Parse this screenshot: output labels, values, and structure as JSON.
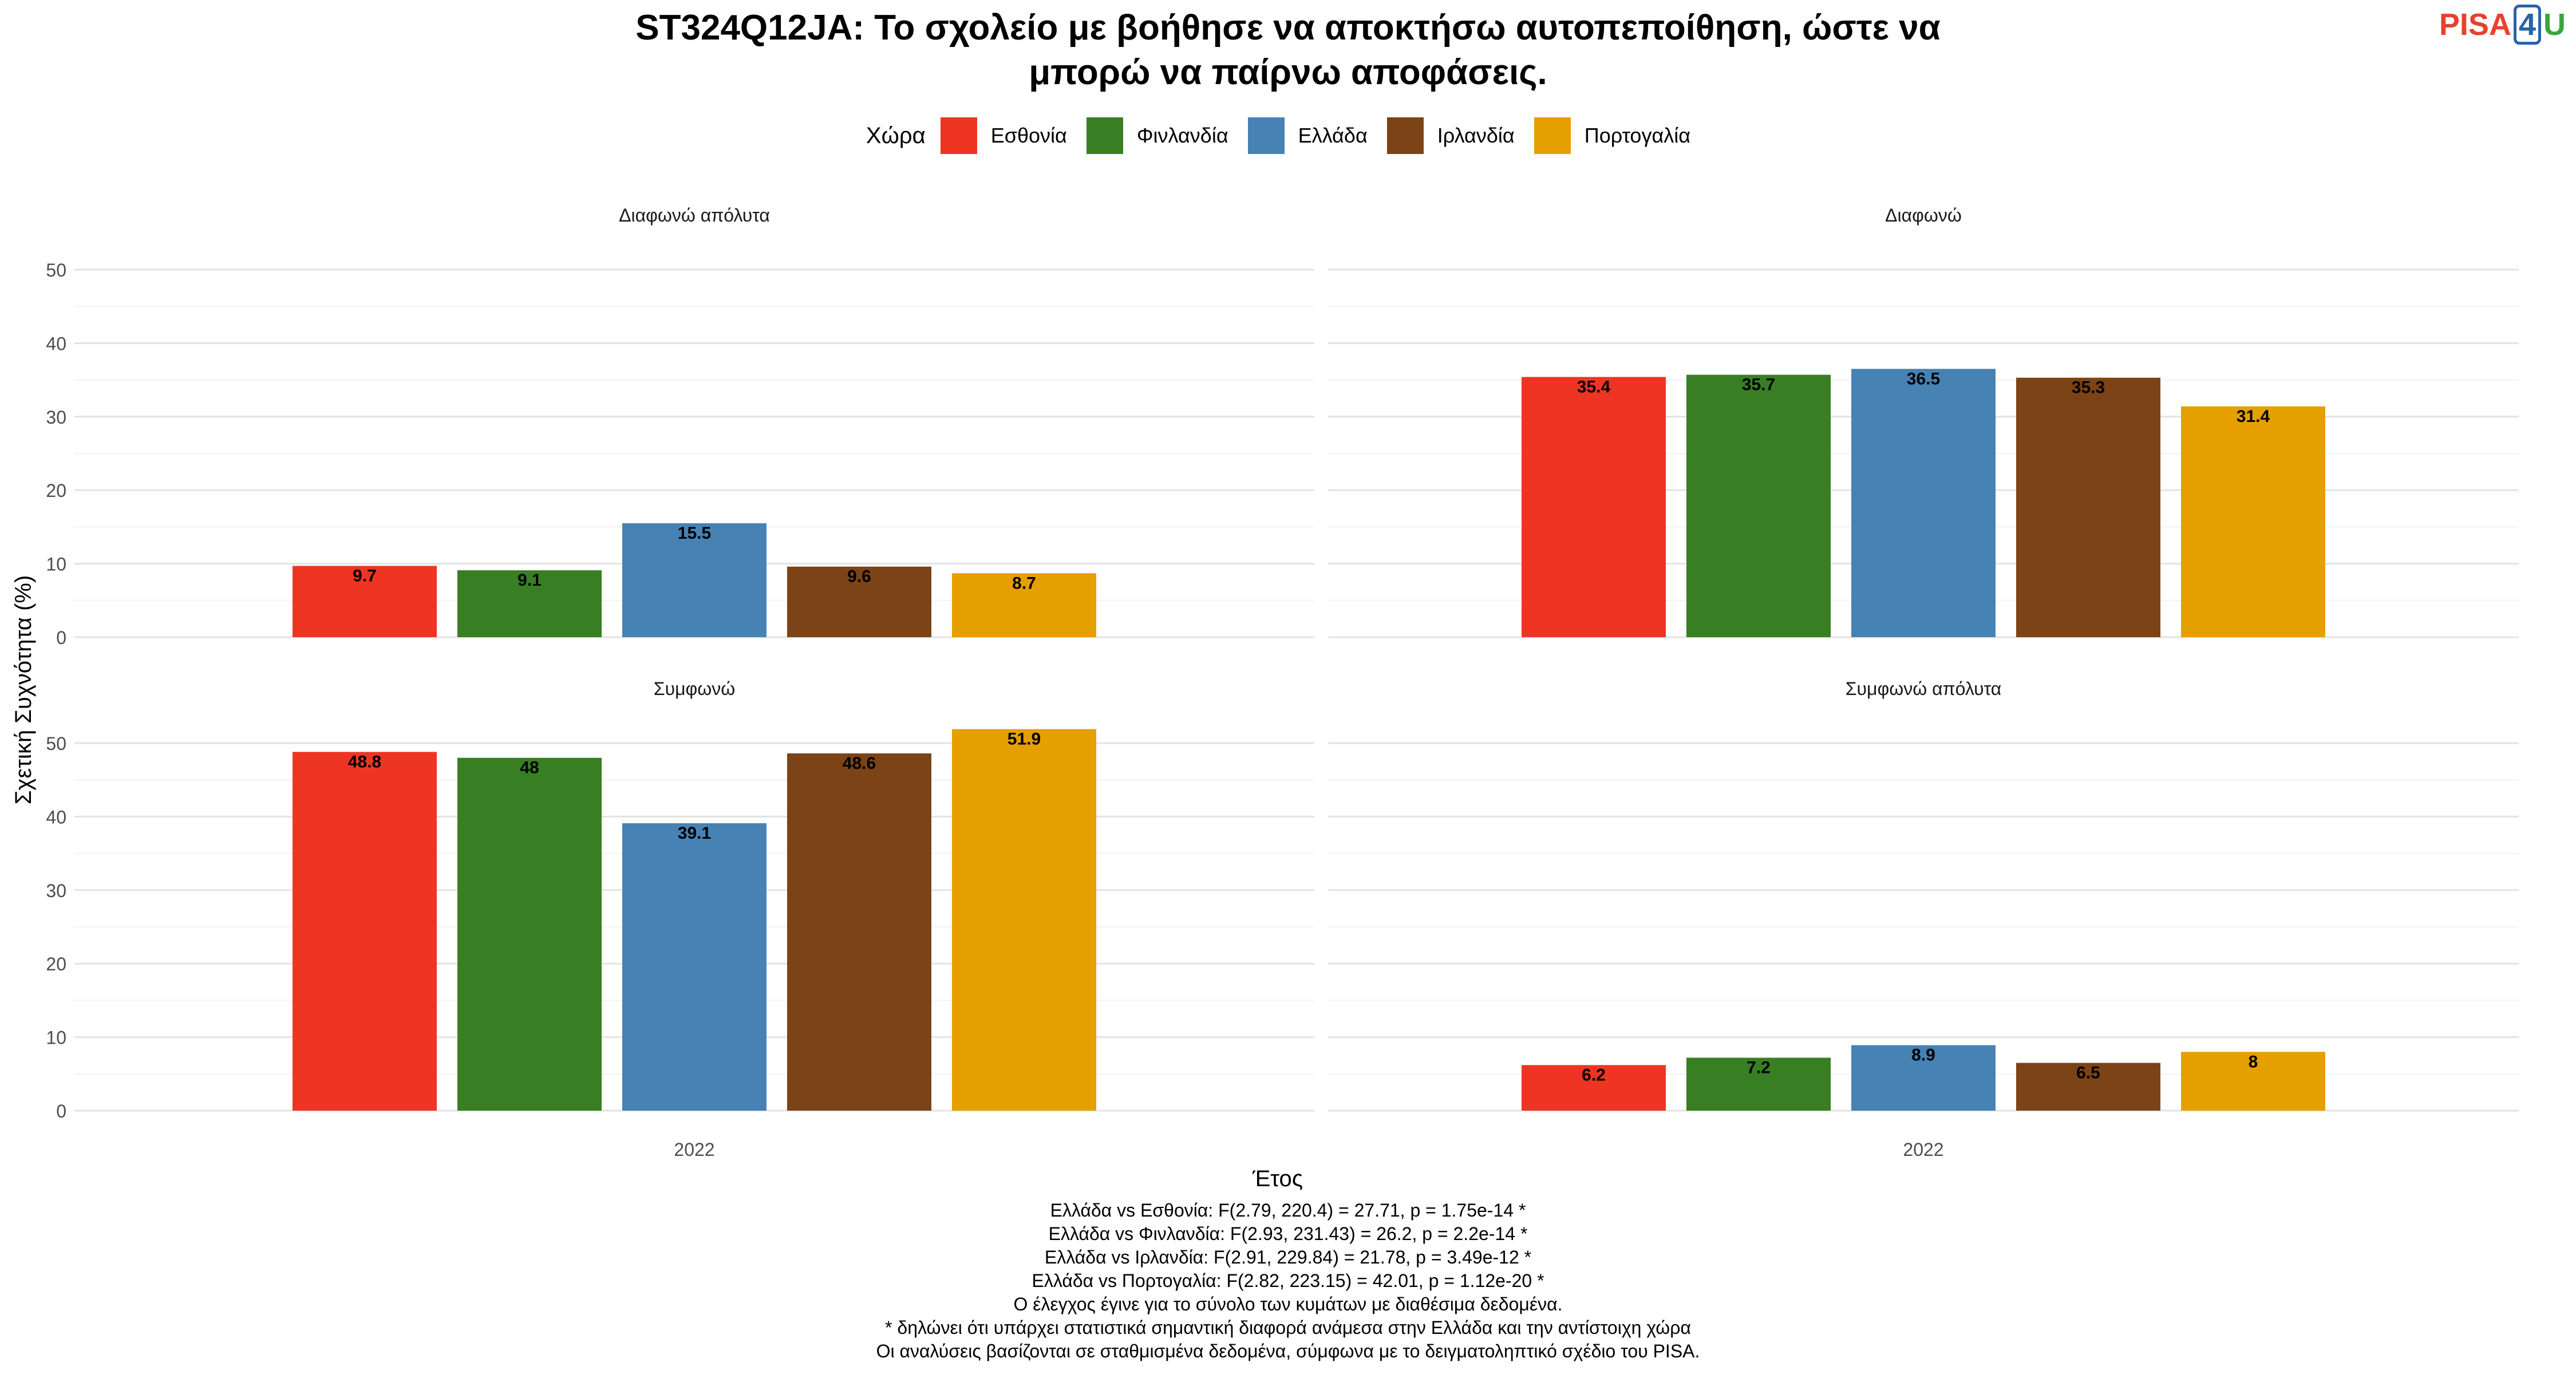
{
  "logo": {
    "part1": "PISA",
    "part2": "4",
    "part3": "U"
  },
  "chart_data": {
    "type": "bar",
    "title_lines": [
      "ST324Q12JA: Το σχολείο με βοήθησε να αποκτήσω αυτοπεποίθηση, ώστε να",
      "μπορώ να παίρνω αποφάσεις."
    ],
    "xlabel": "Έτος",
    "ylabel": "Σχετική Συχνότητα (%)",
    "ylim": [
      0,
      50
    ],
    "yticks": [
      "0",
      "10",
      "20",
      "30",
      "40",
      "50"
    ],
    "x_category": "2022",
    "legend_title": "Χώρα",
    "legend_position": "top",
    "grid": true,
    "series": [
      {
        "name": "Εσθονία",
        "color": "#EE3524"
      },
      {
        "name": "Φινλανδία",
        "color": "#387F23"
      },
      {
        "name": "Ελλάδα",
        "color": "#4682B4"
      },
      {
        "name": "Ιρλανδία",
        "color": "#7B4316"
      },
      {
        "name": "Πορτογαλία",
        "color": "#E5A000"
      }
    ],
    "panels": [
      {
        "title": "Διαφωνώ απόλυτα",
        "values": [
          9.7,
          9.1,
          15.5,
          9.6,
          8.7
        ],
        "labels": [
          "9.7",
          "9.1",
          "15.5",
          "9.6",
          "8.7"
        ]
      },
      {
        "title": "Διαφωνώ",
        "values": [
          35.4,
          35.7,
          36.5,
          35.3,
          31.4
        ],
        "labels": [
          "35.4",
          "35.7",
          "36.5",
          "35.3",
          "31.4"
        ]
      },
      {
        "title": "Συμφωνώ",
        "values": [
          48.8,
          48,
          39.1,
          48.6,
          51.9
        ],
        "labels": [
          "48.8",
          "48",
          "39.1",
          "48.6",
          "51.9"
        ]
      },
      {
        "title": "Συμφωνώ απόλυτα",
        "values": [
          6.2,
          7.2,
          8.9,
          6.5,
          8
        ],
        "labels": [
          "6.2",
          "7.2",
          "8.9",
          "6.5",
          "8"
        ]
      }
    ]
  },
  "notes": [
    "Ελλάδα vs Εσθονία: F(2.79, 220.4) = 27.71, p = 1.75e-14 *",
    "Ελλάδα vs Φινλανδία: F(2.93, 231.43) = 26.2, p = 2.2e-14 *",
    "Ελλάδα vs Ιρλανδία: F(2.91, 229.84) = 21.78, p = 3.49e-12 *",
    "Ελλάδα vs Πορτογαλία: F(2.82, 223.15) = 42.01, p = 1.12e-20 *",
    "Ο έλεγχος έγινε για το σύνολο των κυμάτων με διαθέσιμα δεδομένα.",
    "* δηλώνει ότι υπάρχει στατιστικά σημαντική διαφορά ανάμεσα στην Ελλάδα και την αντίστοιχη χώρα",
    "Οι αναλύσεις βασίζονται σε σταθμισμένα δεδομένα, σύμφωνα με το δειγματοληπτικό σχέδιο του PISA."
  ]
}
